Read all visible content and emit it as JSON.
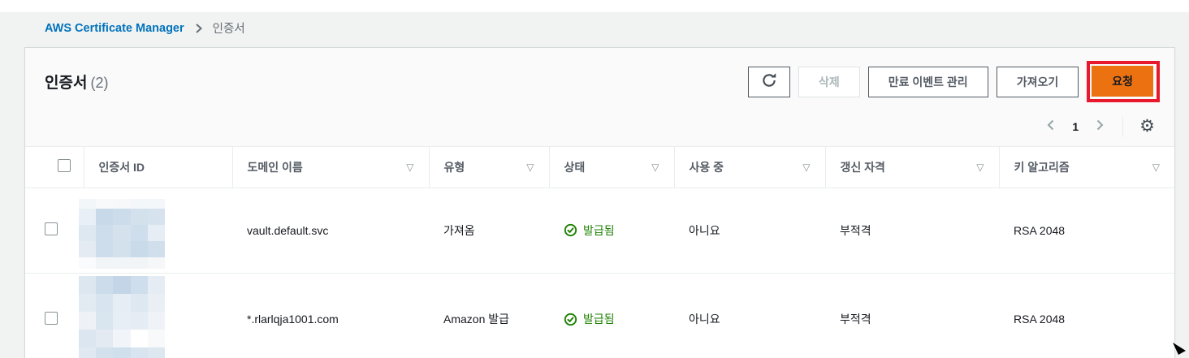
{
  "breadcrumb": {
    "link_label": "AWS Certificate Manager",
    "current": "인증서"
  },
  "page_header": {
    "title": "인증서",
    "count": "(2)"
  },
  "toolbar": {
    "delete_label": "삭제",
    "manage_expiry_label": "만료 이벤트 관리",
    "import_label": "가져오기",
    "request_label": "요청"
  },
  "pagination": {
    "current_page": "1"
  },
  "icons": {
    "gear": "⚙",
    "filter": "▽"
  },
  "table": {
    "columns": [
      {
        "label": "인증서 ID",
        "filterable": false
      },
      {
        "label": "도메인 이름",
        "filterable": true
      },
      {
        "label": "유형",
        "filterable": true
      },
      {
        "label": "상태",
        "filterable": true
      },
      {
        "label": "사용 중",
        "filterable": true
      },
      {
        "label": "갱신 자격",
        "filterable": true
      },
      {
        "label": "키 알고리즘",
        "filterable": true
      }
    ],
    "rows": [
      {
        "domain": "vault.default.svc",
        "type": "가져옴",
        "status": "발급됨",
        "in_use": "아니요",
        "renewal_eligibility": "부적격",
        "key_algorithm": "RSA 2048"
      },
      {
        "domain": "*.rlarlqja1001.com",
        "type": "Amazon 발급",
        "status": "발급됨",
        "in_use": "아니요",
        "renewal_eligibility": "부적격",
        "key_algorithm": "RSA 2048"
      }
    ]
  },
  "colors": {
    "accent_orange": "#ec7211",
    "annotation_red": "#e8192c",
    "status_green": "#1d8102",
    "link_blue": "#0073bb"
  },
  "redaction": {
    "row1_cells": [
      "#f2f6f8",
      "#f7f9fa",
      "#f6f8fa",
      "#f4f7f9",
      "#f4f7f9",
      "#e9eff6",
      "#c8daea",
      "#ccdceb",
      "#d3e1ed",
      "#d6e3ee",
      "#dee8f1",
      "#cdddeb",
      "#d5e2ee",
      "#cfdeec",
      "#e7edf4",
      "#e4ebf2",
      "#cdddeb",
      "#d3e1ed",
      "#c9dbe9",
      "#d1dfec",
      "#f9fbfc",
      "#f2f5f8",
      "#f2f5f8",
      "#f2f5f8",
      "#f5f7f9"
    ],
    "row2_cells": [
      "#dce7f0",
      "#ccdcea",
      "#c3d5e6",
      "#cfdeec",
      "#e5ecf3",
      "#e2eaf2",
      "#d8e4ef",
      "#e7edf4",
      "#dde8f1",
      "#eaeff5",
      "#eef2f7",
      "#d9e5ef",
      "#e8eef5",
      "#e5ecf3",
      "#eff3f7",
      "#dbe6f0",
      "#e3eaf2",
      "#f1f4f8",
      "#ffffff",
      "#f7f9fb",
      "#e0e9f1",
      "#d3e1ed",
      "#d0dfec",
      "#d8e4ef",
      "#dde7f0"
    ]
  }
}
